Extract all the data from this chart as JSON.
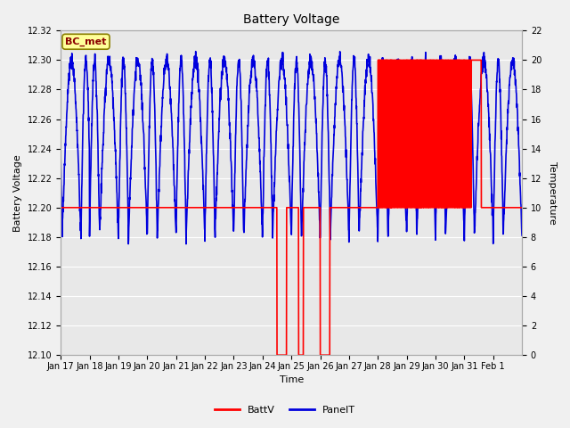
{
  "title": "Battery Voltage",
  "xlabel": "Time",
  "ylabel_left": "Battery Voltage",
  "ylabel_right": "Temperature",
  "left_ylim": [
    12.1,
    12.32
  ],
  "right_ylim": [
    0,
    22
  ],
  "left_yticks": [
    12.1,
    12.12,
    12.14,
    12.16,
    12.18,
    12.2,
    12.22,
    12.24,
    12.26,
    12.28,
    12.3,
    12.32
  ],
  "right_yticks": [
    0,
    2,
    4,
    6,
    8,
    10,
    12,
    14,
    16,
    18,
    20,
    22
  ],
  "xtick_labels": [
    "Jan 17",
    "Jan 18",
    "Jan 19",
    "Jan 20",
    "Jan 21",
    "Jan 22",
    "Jan 23",
    "Jan 24",
    "Jan 25",
    "Jan 26",
    "Jan 27",
    "Jan 28",
    "Jan 29",
    "Jan 30",
    "Jan 31",
    "Feb 1"
  ],
  "background_color": "#f0f0f0",
  "plot_bg_color": "#e8e8e8",
  "grid_color": "#ffffff",
  "batt_color": "#ff0000",
  "panel_color": "#0000dd",
  "batt_linewidth": 1.2,
  "panel_linewidth": 1.2,
  "legend_label_batt": "BattV",
  "legend_label_panel": "PanelT",
  "annotation_text": "BC_met",
  "annotation_color": "#8b0000",
  "annotation_bg": "#ffff99",
  "annotation_border": "#8b8000",
  "title_fontsize": 10,
  "axis_label_fontsize": 8,
  "tick_fontsize": 7
}
